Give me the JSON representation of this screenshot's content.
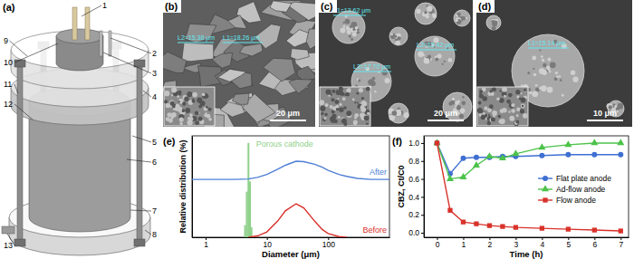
{
  "panels": {
    "a": {
      "label": "(a)",
      "callouts": [
        "1",
        "2",
        "3",
        "4",
        "5",
        "6",
        "7",
        "8",
        "9",
        "10",
        "11",
        "12",
        "13"
      ]
    },
    "b": {
      "label": "(b)",
      "measurements": [
        "L2=15.38 μm",
        "L1=18.26 μm"
      ],
      "scale_bar": "20 μm"
    },
    "c": {
      "label": "(c)",
      "measurements": [
        "L1=13.62 μm",
        "L2=15.42 μm",
        "L3=17.70 μm"
      ],
      "scale_bar": "20 μm"
    },
    "d": {
      "label": "(d)",
      "measurements": [
        "L1=15.14 μm"
      ],
      "scale_bar": "10 μm"
    }
  },
  "chart_data": [
    {
      "type": "line",
      "title": "(e)",
      "xlabel": "Diameter (μm)",
      "ylabel": "Relative distribution (%)",
      "log": "x",
      "xlim": [
        0.6,
        1000
      ],
      "xticks": [
        1,
        10,
        100
      ],
      "ylim": [
        0,
        1
      ],
      "tick_labels": "x",
      "series": [
        {
          "name": "Porous cathode",
          "type": "bar",
          "color": "#8fd18a",
          "x": [
            4.4,
            4.7,
            5.0,
            5.3,
            5.6
          ],
          "values": [
            0.12,
            0.45,
            0.93,
            0.55,
            0.1
          ]
        },
        {
          "name": "After",
          "type": "line",
          "color": "#4f7fd6",
          "x": [
            0.6,
            1,
            2,
            3,
            5,
            7,
            10,
            15,
            20,
            30,
            40,
            60,
            80,
            100,
            150,
            200,
            300,
            500,
            1000
          ],
          "values": [
            0.57,
            0.57,
            0.57,
            0.57,
            0.575,
            0.59,
            0.62,
            0.67,
            0.71,
            0.75,
            0.745,
            0.72,
            0.69,
            0.66,
            0.62,
            0.6,
            0.58,
            0.57,
            0.57
          ]
        },
        {
          "name": "Before",
          "type": "line",
          "color": "#d9302a",
          "x": [
            5,
            7,
            10,
            15,
            20,
            30,
            40,
            60,
            80,
            100,
            150,
            200
          ],
          "values": [
            0,
            0.013,
            0.053,
            0.16,
            0.26,
            0.33,
            0.29,
            0.16,
            0.077,
            0.037,
            0.007,
            0
          ]
        }
      ]
    },
    {
      "type": "line",
      "title": "(f)",
      "xlabel": "Time (h)",
      "ylabel": "CBZ, Ct/C0",
      "x": [
        0,
        0.5,
        1,
        1.5,
        2,
        2.5,
        3,
        4,
        5,
        6,
        7
      ],
      "xlim": [
        -0.5,
        7.3
      ],
      "xticks": [
        0,
        1,
        2,
        3,
        4,
        5,
        6,
        7
      ],
      "ylim": [
        -0.05,
        1.08
      ],
      "yticks": [
        {
          "value": 0,
          "label": "0.0"
        },
        {
          "value": 0.2,
          "label": "0.2"
        },
        {
          "value": 0.4,
          "label": "0.4"
        },
        {
          "value": 0.6,
          "label": "0.6"
        },
        {
          "value": 0.8,
          "label": "0.8"
        },
        {
          "value": 1,
          "label": "1.0"
        }
      ],
      "legend": "right",
      "series": [
        {
          "name": "Flat plate anode",
          "color": "#3f6fd1",
          "marker": "circle",
          "values": [
            1.0,
            0.66,
            0.83,
            0.84,
            0.84,
            0.85,
            0.85,
            0.86,
            0.87,
            0.87,
            0.87
          ]
        },
        {
          "name": "Ad-flow anode",
          "color": "#4cc24a",
          "marker": "triangle",
          "values": [
            1.0,
            0.6,
            0.62,
            0.75,
            0.85,
            0.83,
            0.88,
            0.95,
            0.98,
            1.0,
            1.0
          ]
        },
        {
          "name": "Flow anode",
          "color": "#d8322a",
          "marker": "square",
          "values": [
            1.0,
            0.25,
            0.12,
            0.1,
            0.08,
            0.07,
            0.06,
            0.05,
            0.04,
            0.03,
            0.02
          ]
        }
      ]
    }
  ]
}
